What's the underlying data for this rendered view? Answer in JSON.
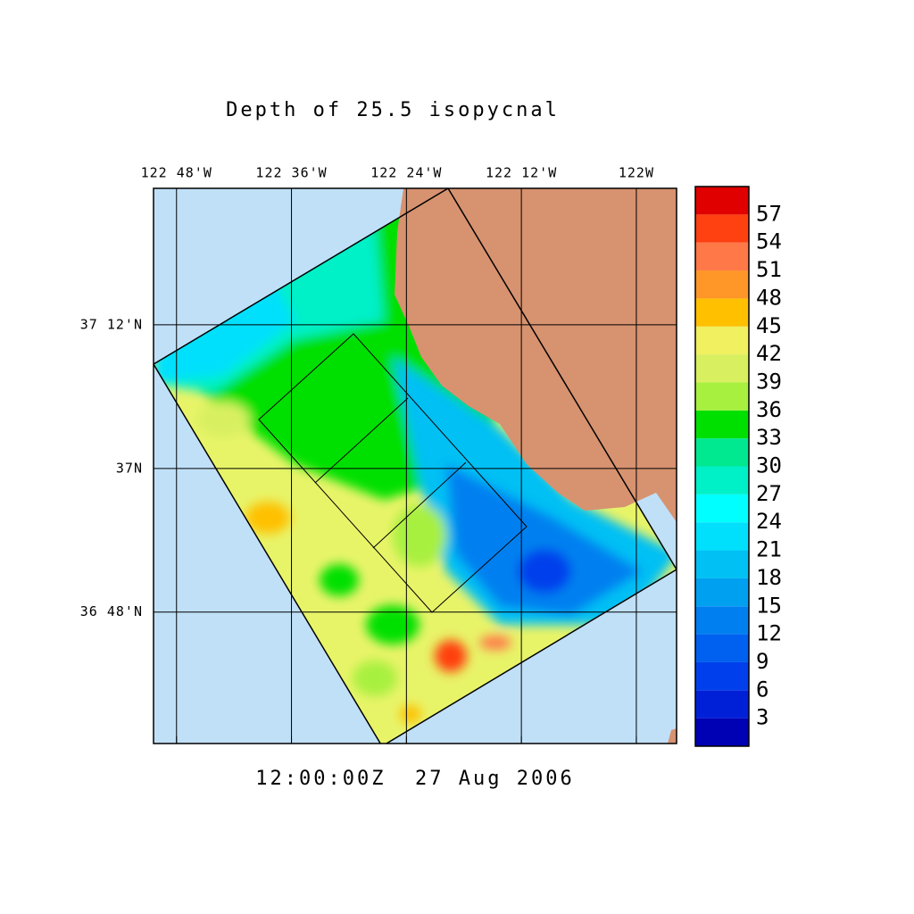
{
  "chart_data": {
    "type": "map",
    "title": "Depth of 25.5 isopycnal",
    "time_label": "12:00:00Z  27 Aug 2006",
    "xlim": [
      -122.84,
      -121.93
    ],
    "ylim": [
      36.617,
      37.39
    ],
    "xticks": [
      {
        "value": -122.8,
        "label": "122 48'W"
      },
      {
        "value": -122.6,
        "label": "122 36'W"
      },
      {
        "value": -122.4,
        "label": "122 24'W"
      },
      {
        "value": -122.2,
        "label": "122 12'W"
      },
      {
        "value": -122.0,
        "label": "122W"
      }
    ],
    "yticks": [
      {
        "value": 37.2,
        "label": "37 12'N"
      },
      {
        "value": 37.0,
        "label": "37N"
      },
      {
        "value": 36.8,
        "label": "36 48'N"
      }
    ],
    "grid": true,
    "colorbar": {
      "lim": [
        0,
        60
      ],
      "ticks": [
        3,
        6,
        9,
        12,
        15,
        18,
        21,
        24,
        27,
        30,
        33,
        36,
        39,
        42,
        45,
        48,
        51,
        54,
        57
      ],
      "colors": [
        "#0000b4",
        "#0020d8",
        "#0040ec",
        "#0060f0",
        "#0080f0",
        "#00a0f0",
        "#00c0f4",
        "#00e0fc",
        "#00ffff",
        "#00f0c8",
        "#00e890",
        "#00e000",
        "#a8f040",
        "#d8f060",
        "#f0f060",
        "#ffc000",
        "#ff9628",
        "#ff7848",
        "#ff4010",
        "#e00000"
      ]
    }
  }
}
